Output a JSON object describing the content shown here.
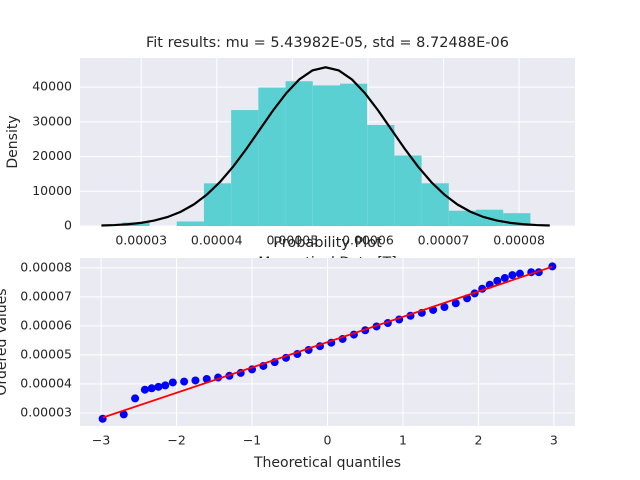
{
  "chart_data": [
    {
      "type": "histogram",
      "title": "Fit results: mu = 5.43982E-05,  std = 8.72488E-06",
      "xlabel": "Magnetical Data [T]",
      "ylabel": "Density",
      "bins": [
        2.75e-05,
        3.11e-05,
        3.47e-05,
        3.83e-05,
        4.19e-05,
        4.55e-05,
        4.91e-05,
        5.27e-05,
        5.63e-05,
        5.99e-05,
        6.35e-05,
        6.71e-05,
        7.07e-05,
        7.43e-05,
        7.79e-05,
        8.15e-05
      ],
      "values": [
        1000,
        0,
        1300,
        12300,
        33400,
        39900,
        41700,
        40500,
        41000,
        29100,
        20300,
        12300,
        4400,
        4700,
        3700
      ],
      "color": "#5bd0d2",
      "curve": {
        "color": "#000000",
        "x": [
          2.47336e-05,
          2.64786e-05,
          2.82236e-05,
          2.99685e-05,
          3.17135e-05,
          3.34585e-05,
          3.52035e-05,
          3.69484e-05,
          3.86934e-05,
          4.04384e-05,
          4.21834e-05,
          4.39283e-05,
          4.56733e-05,
          4.74183e-05,
          4.91633e-05,
          5.09082e-05,
          5.26532e-05,
          5.43982e-05,
          5.61432e-05,
          5.78882e-05,
          5.96331e-05,
          6.13781e-05,
          6.31231e-05,
          6.48681e-05,
          6.6613e-05,
          6.8358e-05,
          7.0103e-05,
          7.1848e-05,
          7.35929e-05,
          7.53379e-05,
          7.70829e-05,
          7.88279e-05,
          8.05728e-05,
          8.23178e-05,
          8.40628e-05
        ],
        "y": [
          141,
          273,
          508,
          905,
          1556,
          2565,
          4065,
          6188,
          9049,
          12711,
          17160,
          22258,
          27733,
          33200,
          38193,
          42208,
          44819,
          45724,
          44819,
          42208,
          38193,
          33200,
          27733,
          22258,
          17160,
          12711,
          9049,
          6188,
          4065,
          2565,
          1556,
          905,
          508,
          273,
          141
        ]
      },
      "xlim": [
        2.19e-05,
        8.74e-05
      ],
      "xticks": [
        3e-05,
        4e-05,
        5e-05,
        6e-05,
        7e-05,
        8e-05
      ],
      "ylim": [
        0,
        48400
      ],
      "yticks": [
        0,
        10000,
        20000,
        30000,
        40000
      ],
      "grid": true
    },
    {
      "type": "probplot",
      "title": "Probability Plot",
      "xlabel": "Theoretical quantiles",
      "ylabel": "Ordered Values",
      "points": {
        "color": "#0000ff",
        "x": [
          -2.98,
          -2.7,
          -2.55,
          -2.42,
          -2.33,
          -2.24,
          -2.15,
          -2.05,
          -1.9,
          -1.75,
          -1.6,
          -1.45,
          -1.3,
          -1.15,
          -1.0,
          -0.85,
          -0.7,
          -0.55,
          -0.4,
          -0.25,
          -0.1,
          0.05,
          0.2,
          0.35,
          0.5,
          0.65,
          0.8,
          0.95,
          1.1,
          1.25,
          1.4,
          1.55,
          1.7,
          1.85,
          1.95,
          2.05,
          2.15,
          2.25,
          2.35,
          2.45,
          2.55,
          2.7,
          2.8,
          2.98
        ],
        "y": [
          2.8e-05,
          2.95e-05,
          3.5e-05,
          3.8e-05,
          3.85e-05,
          3.9e-05,
          3.95e-05,
          4.05e-05,
          4.08e-05,
          4.12e-05,
          4.17e-05,
          4.22e-05,
          4.28e-05,
          4.38e-05,
          4.5e-05,
          4.62e-05,
          4.75e-05,
          4.9e-05,
          5.03e-05,
          5.17e-05,
          5.3e-05,
          5.42e-05,
          5.55e-05,
          5.7e-05,
          5.85e-05,
          5.98e-05,
          6.1e-05,
          6.22e-05,
          6.35e-05,
          6.45e-05,
          6.55e-05,
          6.65e-05,
          6.78e-05,
          6.95e-05,
          7.12e-05,
          7.28e-05,
          7.42e-05,
          7.55e-05,
          7.65e-05,
          7.75e-05,
          7.8e-05,
          7.85e-05,
          7.85e-05,
          8.05e-05
        ]
      },
      "fit_line": {
        "color": "#ff0000",
        "x": [
          -2.98,
          2.98
        ],
        "y": [
          2.84e-05,
          8.04e-05
        ]
      },
      "xlim": [
        -3.28,
        3.28
      ],
      "xticks": [
        {
          "value": -3,
          "label": "−3"
        },
        {
          "value": -2,
          "label": "−2"
        },
        {
          "value": -1,
          "label": "−1"
        },
        0,
        1,
        2,
        3
      ],
      "ylim": [
        2.55e-05,
        8.34e-05
      ],
      "yticks": [
        3e-05,
        4e-05,
        5e-05,
        6e-05,
        7e-05,
        8e-05
      ],
      "grid": true
    }
  ]
}
